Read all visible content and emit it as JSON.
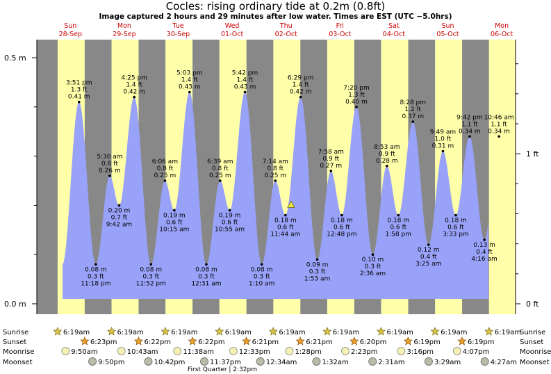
{
  "title": "Cocles: rising  ordinary tide at 0.2m (0.8ft)",
  "subtitle": "Image captured 2 hours and 29 minutes after low water. Times are EST (UTC −5.0hrs)",
  "chart_data": {
    "type": "area",
    "y_unit_left": "m",
    "y_unit_right": "ft",
    "y_ticks_left": [
      "0.5 m",
      "0.0 m"
    ],
    "y_ticks_right": [
      "1 ft",
      "0 ft"
    ],
    "days": [
      {
        "name": "Sun",
        "date": "28-Sep"
      },
      {
        "name": "Mon",
        "date": "29-Sep"
      },
      {
        "name": "Tue",
        "date": "30-Sep"
      },
      {
        "name": "Wed",
        "date": "01-Oct"
      },
      {
        "name": "Thu",
        "date": "02-Oct"
      },
      {
        "name": "Fri",
        "date": "03-Oct"
      },
      {
        "name": "Sat",
        "date": "04-Oct"
      },
      {
        "name": "Sun",
        "date": "05-Oct"
      },
      {
        "name": "Mon",
        "date": "06-Oct"
      }
    ],
    "tides": [
      {
        "time": "3:51 pm",
        "ft": "1.3 ft",
        "m": "0.41 m",
        "height": 0.41,
        "type": "high"
      },
      {
        "time": "11:18 pm",
        "ft": "0.3 ft",
        "m": "0.08 m",
        "height": 0.08,
        "type": "low"
      },
      {
        "time": "5:30 am",
        "ft": "0.8 ft",
        "m": "0.26 m",
        "height": 0.26,
        "type": "high"
      },
      {
        "time": "9:42 am",
        "ft": "0.7 ft",
        "m": "0.20 m",
        "height": 0.2,
        "type": "low"
      },
      {
        "time": "4:25 pm",
        "ft": "1.4 ft",
        "m": "0.42 m",
        "height": 0.42,
        "type": "high"
      },
      {
        "time": "11:52 pm",
        "ft": "0.3 ft",
        "m": "0.08 m",
        "height": 0.08,
        "type": "low"
      },
      {
        "time": "6:06 am",
        "ft": "0.8 ft",
        "m": "0.25 m",
        "height": 0.25,
        "type": "high"
      },
      {
        "time": "10:15 am",
        "ft": "0.6 ft",
        "m": "0.19 m",
        "height": 0.19,
        "type": "low"
      },
      {
        "time": "5:03 pm",
        "ft": "1.4 ft",
        "m": "0.43 m",
        "height": 0.43,
        "type": "high"
      },
      {
        "time": "12:31 am",
        "ft": "0.3 ft",
        "m": "0.08 m",
        "height": 0.08,
        "type": "low"
      },
      {
        "time": "6:39 am",
        "ft": "0.8 ft",
        "m": "0.25 m",
        "height": 0.25,
        "type": "high"
      },
      {
        "time": "10:55 am",
        "ft": "0.6 ft",
        "m": "0.19 m",
        "height": 0.19,
        "type": "low"
      },
      {
        "time": "5:42 pm",
        "ft": "1.4 ft",
        "m": "0.43 m",
        "height": 0.43,
        "type": "high"
      },
      {
        "time": "1:10 am",
        "ft": "0.3 ft",
        "m": "0.08 m",
        "height": 0.08,
        "type": "low"
      },
      {
        "time": "7:14 am",
        "ft": "0.8 ft",
        "m": "0.25 m",
        "height": 0.25,
        "type": "high"
      },
      {
        "time": "11:44 am",
        "ft": "0.6 ft",
        "m": "0.18 m",
        "height": 0.18,
        "type": "low"
      },
      {
        "time": "6:29 pm",
        "ft": "1.4 ft",
        "m": "0.42 m",
        "height": 0.42,
        "type": "high"
      },
      {
        "time": "1:53 am",
        "ft": "0.3 ft",
        "m": "0.09 m",
        "height": 0.09,
        "type": "low"
      },
      {
        "time": "7:58 am",
        "ft": "0.9 ft",
        "m": "0.27 m",
        "height": 0.27,
        "type": "high"
      },
      {
        "time": "12:48 pm",
        "ft": "0.6 ft",
        "m": "0.18 m",
        "height": 0.18,
        "type": "low"
      },
      {
        "time": "7:20 pm",
        "ft": "1.3 ft",
        "m": "0.40 m",
        "height": 0.4,
        "type": "high"
      },
      {
        "time": "2:36 am",
        "ft": "0.3 ft",
        "m": "0.10 m",
        "height": 0.1,
        "type": "low"
      },
      {
        "time": "8:53 am",
        "ft": "0.9 ft",
        "m": "0.28 m",
        "height": 0.28,
        "type": "high"
      },
      {
        "time": "1:58 pm",
        "ft": "0.6 ft",
        "m": "0.18 m",
        "height": 0.18,
        "type": "low"
      },
      {
        "time": "8:28 pm",
        "ft": "1.2 ft",
        "m": "0.37 m",
        "height": 0.37,
        "type": "high"
      },
      {
        "time": "3:25 am",
        "ft": "0.4 ft",
        "m": "0.12 m",
        "height": 0.12,
        "type": "low"
      },
      {
        "time": "9:49 am",
        "ft": "1.0 ft",
        "m": "0.31 m",
        "height": 0.31,
        "type": "high"
      },
      {
        "time": "3:33 pm",
        "ft": "0.6 ft",
        "m": "0.18 m",
        "height": 0.18,
        "type": "low"
      },
      {
        "time": "9:42 pm",
        "ft": "1.1 ft",
        "m": "0.34 m",
        "height": 0.34,
        "type": "high"
      },
      {
        "time": "4:16 am",
        "ft": "0.4 ft",
        "m": "0.13 m",
        "height": 0.13,
        "type": "low"
      },
      {
        "time": "10:46 am",
        "ft": "1.1 ft",
        "m": "0.34 m",
        "height": 0.34,
        "type": "high"
      }
    ],
    "rows": {
      "sunrise": {
        "label": "Sunrise",
        "times": [
          "6:19am",
          "6:19am",
          "6:19am",
          "6:19am",
          "6:19am",
          "6:19am",
          "6:19am",
          "6:19am",
          "6:19am"
        ]
      },
      "sunset": {
        "label": "Sunset",
        "times": [
          "6:23pm",
          "6:22pm",
          "6:22pm",
          "6:21pm",
          "6:21pm",
          "6:20pm",
          "6:19pm",
          "6:19pm"
        ]
      },
      "moonrise": {
        "label": "Moonrise",
        "times": [
          "9:50am",
          "10:43am",
          "11:38am",
          "12:33pm",
          "1:28pm",
          "2:23pm",
          "3:16pm",
          "4:07pm"
        ]
      },
      "moonset": {
        "label": "Moonset",
        "times": [
          "9:50pm",
          "10:42pm",
          "11:37pm",
          "12:34am",
          "1:32am",
          "2:31am",
          "3:29am",
          "4:27am"
        ]
      }
    },
    "moon_phase": "First Quarter | 2:32pm",
    "colors": {
      "day": "#ffffaa",
      "night": "#888888",
      "water": "#99a2f9",
      "daylabel": "#cc0000",
      "sun": "#e8a22c",
      "moon": "#f5f1b0"
    }
  }
}
